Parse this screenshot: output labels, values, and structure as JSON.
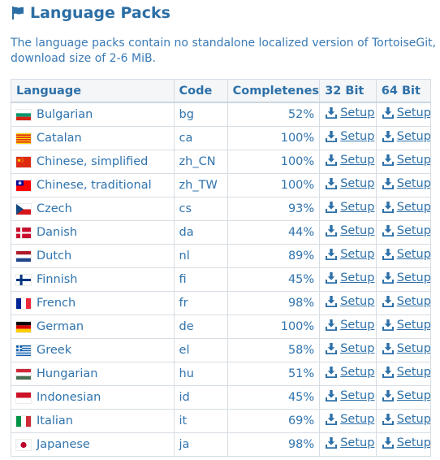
{
  "heading": {
    "icon": "flag-icon",
    "title": "Language Packs"
  },
  "intro": "The language packs contain no standalone localized version of TortoiseGit, download size of 2-6 MiB.",
  "table": {
    "headers": {
      "language": "Language",
      "code": "Code",
      "completeness": "Completeness",
      "bit32": "32 Bit",
      "bit64": "64 Bit"
    },
    "setup_label": "Setup",
    "setup_icon": "download-icon",
    "rows": [
      {
        "language": "Bulgarian",
        "code": "bg",
        "completeness": "52%",
        "flag": "bg"
      },
      {
        "language": "Catalan",
        "code": "ca",
        "completeness": "100%",
        "flag": "ca"
      },
      {
        "language": "Chinese, simplified",
        "code": "zh_CN",
        "completeness": "100%",
        "flag": "cn"
      },
      {
        "language": "Chinese, traditional",
        "code": "zh_TW",
        "completeness": "100%",
        "flag": "tw"
      },
      {
        "language": "Czech",
        "code": "cs",
        "completeness": "93%",
        "flag": "cz"
      },
      {
        "language": "Danish",
        "code": "da",
        "completeness": "44%",
        "flag": "dk"
      },
      {
        "language": "Dutch",
        "code": "nl",
        "completeness": "89%",
        "flag": "nl"
      },
      {
        "language": "Finnish",
        "code": "fi",
        "completeness": "45%",
        "flag": "fi"
      },
      {
        "language": "French",
        "code": "fr",
        "completeness": "98%",
        "flag": "fr"
      },
      {
        "language": "German",
        "code": "de",
        "completeness": "100%",
        "flag": "de"
      },
      {
        "language": "Greek",
        "code": "el",
        "completeness": "58%",
        "flag": "gr"
      },
      {
        "language": "Hungarian",
        "code": "hu",
        "completeness": "51%",
        "flag": "hu"
      },
      {
        "language": "Indonesian",
        "code": "id",
        "completeness": "45%",
        "flag": "id"
      },
      {
        "language": "Italian",
        "code": "it",
        "completeness": "69%",
        "flag": "it"
      },
      {
        "language": "Japanese",
        "code": "ja",
        "completeness": "98%",
        "flag": "jp"
      }
    ]
  }
}
